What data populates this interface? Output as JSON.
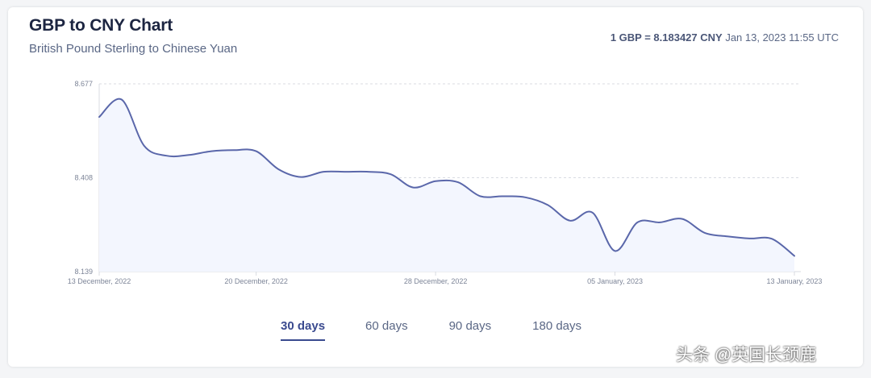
{
  "header": {
    "title": "GBP to CNY Chart",
    "subtitle": "British Pound Sterling to Chinese Yuan",
    "rate_bold": "1 GBP = 8.183427 CNY",
    "rate_time": "Jan 13, 2023 11:55 UTC"
  },
  "tabs": [
    {
      "label": "30 days",
      "active": true
    },
    {
      "label": "60 days",
      "active": false
    },
    {
      "label": "90 days",
      "active": false
    },
    {
      "label": "180 days",
      "active": false
    }
  ],
  "watermark": "头条 @英国长颈鹿",
  "colors": {
    "line": "#5a67aa",
    "fill": "#f3f6fe",
    "grid": "#d8dbe2",
    "accent": "#3a4a8f"
  },
  "chart_data": {
    "type": "area",
    "title": "GBP to CNY Chart",
    "subtitle": "British Pound Sterling to Chinese Yuan",
    "xlabel": "",
    "ylabel": "",
    "ylim": [
      8.139,
      8.677
    ],
    "yticks": [
      8.677,
      8.408,
      8.139
    ],
    "ytick_labels": [
      "8.677",
      "8.408",
      "8.139"
    ],
    "xticks": [
      0,
      7,
      15,
      23,
      31
    ],
    "xtick_labels": [
      "13 December, 2022",
      "20 December, 2022",
      "28 December, 2022",
      "05 January, 2023",
      "13 January, 2023"
    ],
    "grid": true,
    "series": [
      {
        "name": "GBP/CNY",
        "x": [
          0,
          1,
          2,
          3,
          4,
          5,
          6,
          7,
          8,
          9,
          10,
          11,
          12,
          13,
          14,
          15,
          16,
          17,
          18,
          19,
          20,
          21,
          22,
          23,
          24,
          25,
          26,
          27,
          28,
          29,
          30,
          31
        ],
        "values": [
          8.582,
          8.632,
          8.5,
          8.471,
          8.473,
          8.484,
          8.487,
          8.484,
          8.432,
          8.41,
          8.425,
          8.425,
          8.425,
          8.418,
          8.38,
          8.398,
          8.395,
          8.355,
          8.355,
          8.352,
          8.33,
          8.285,
          8.308,
          8.198,
          8.28,
          8.28,
          8.29,
          8.25,
          8.24,
          8.234,
          8.233,
          8.184
        ]
      }
    ]
  }
}
